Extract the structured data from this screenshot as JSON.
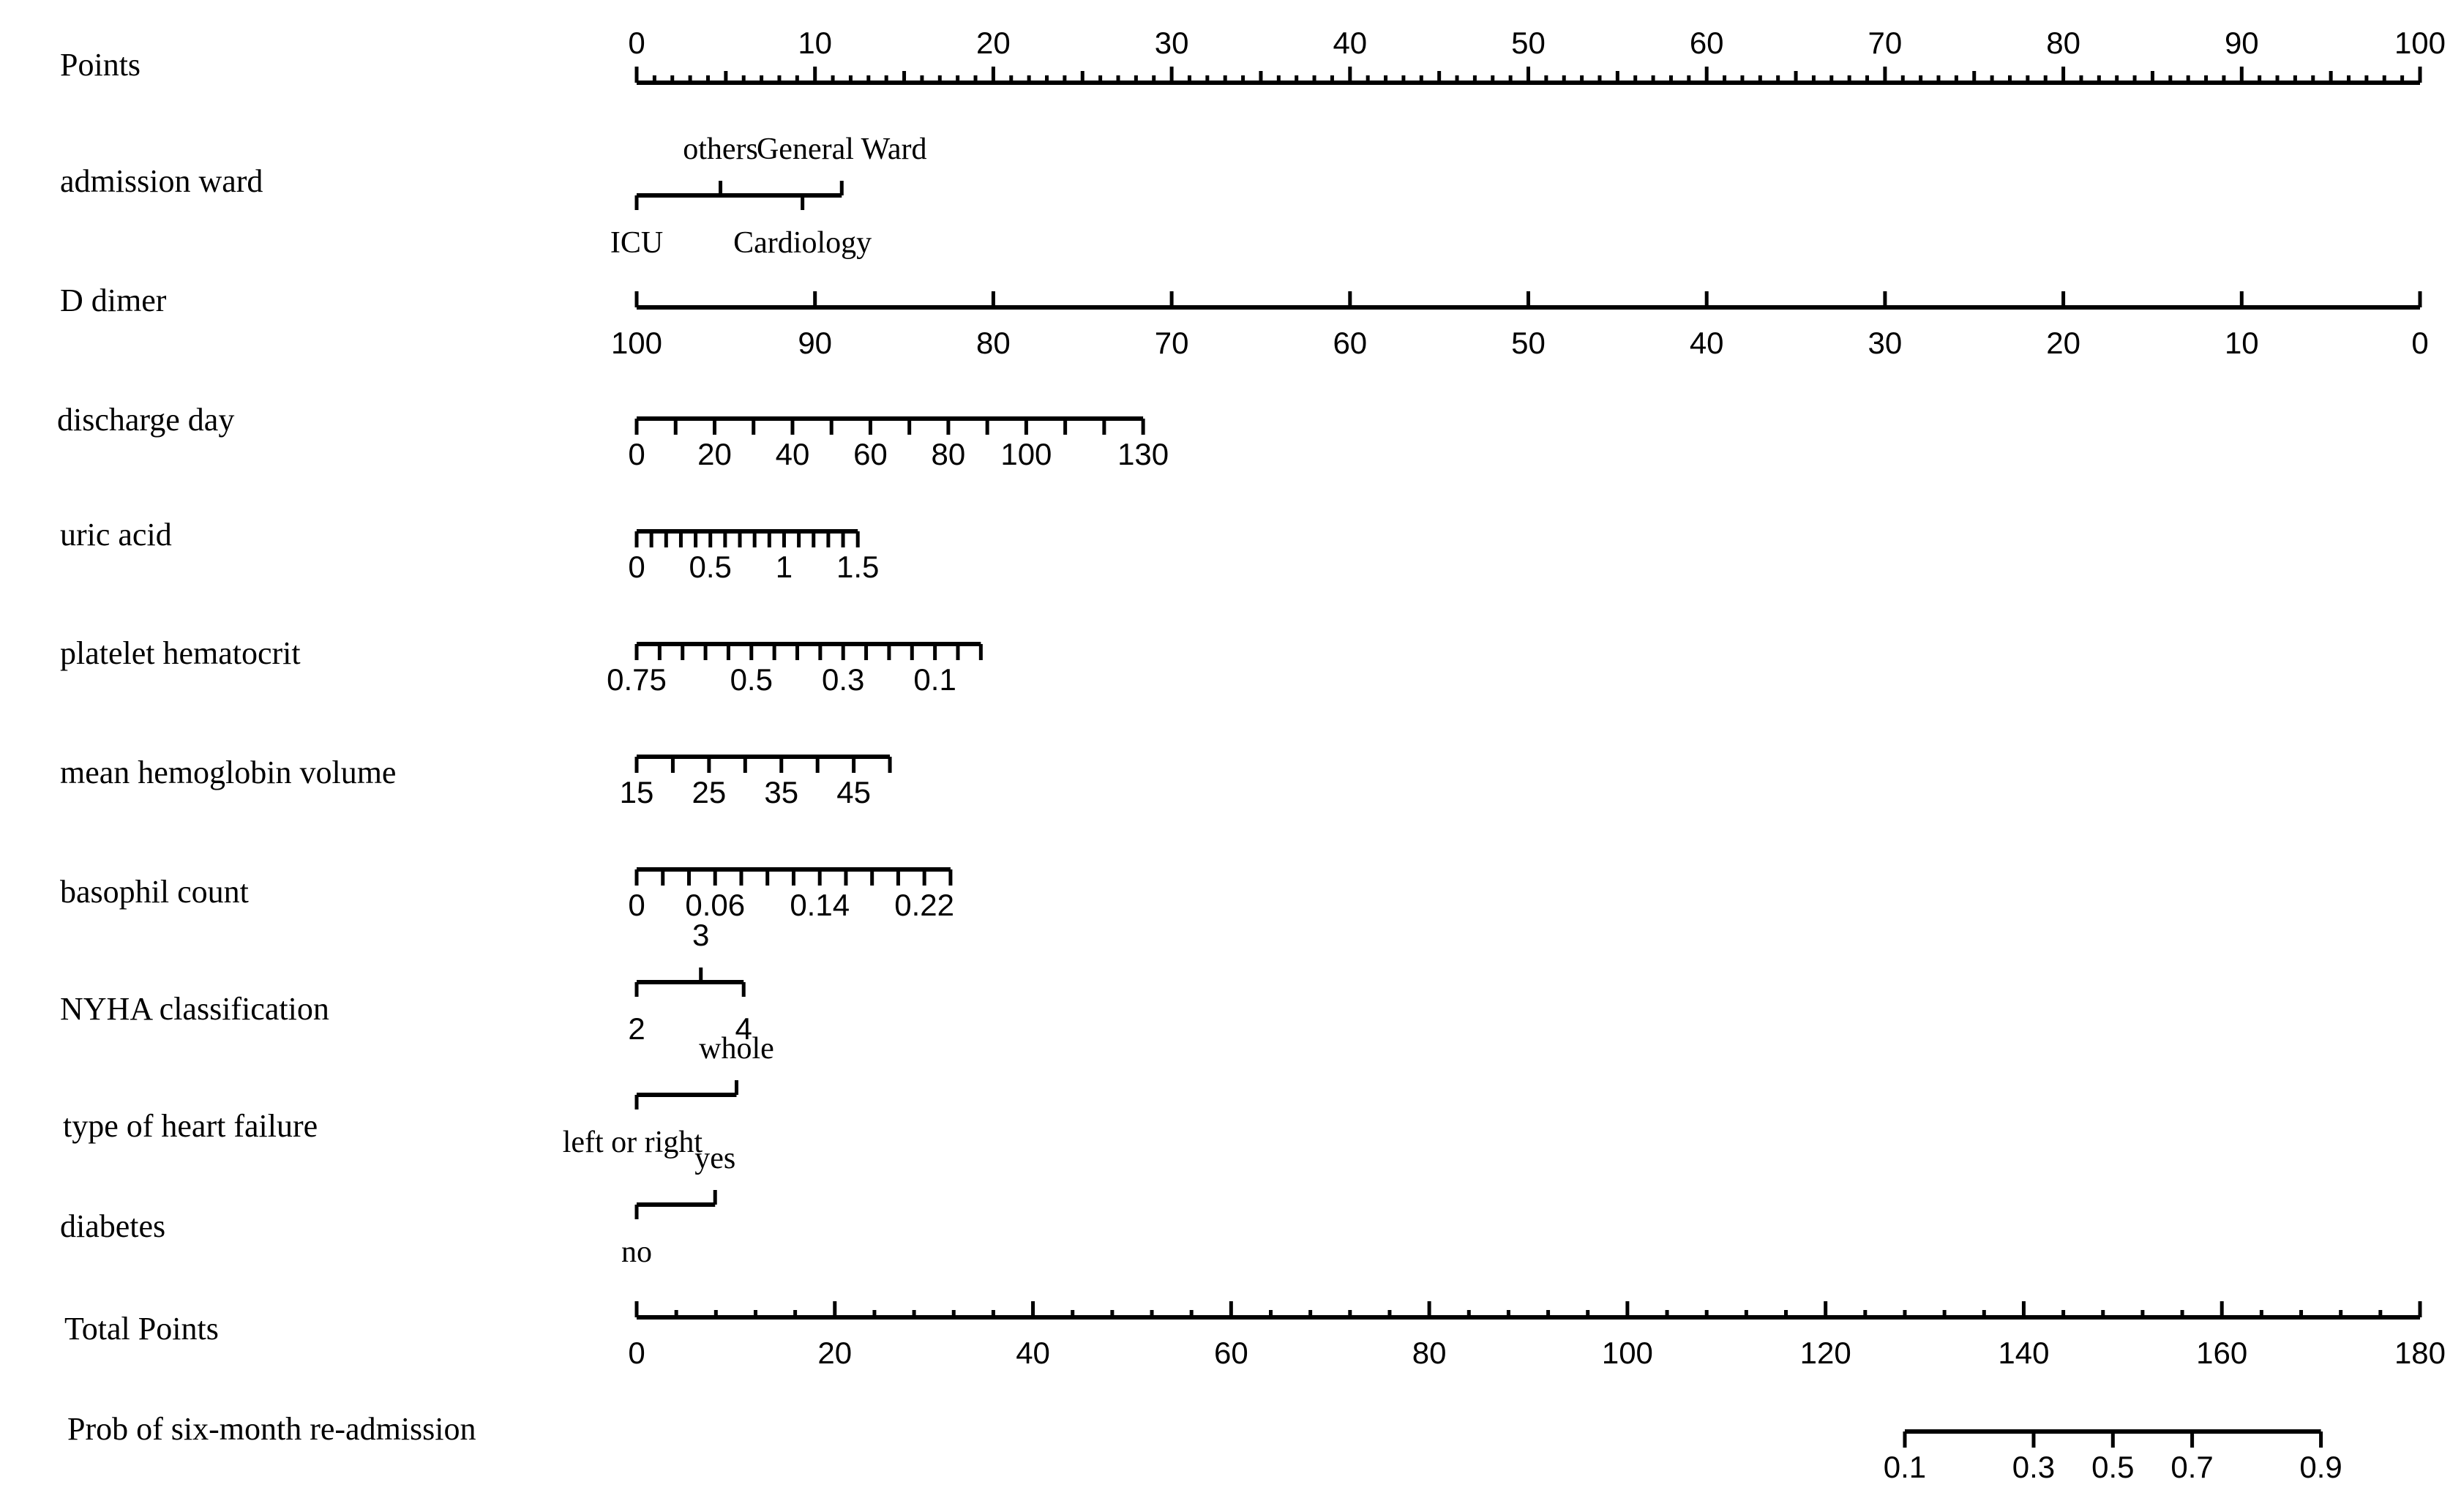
{
  "chart_data": {
    "type": "nomogram",
    "rows": [
      {
        "label": "Points",
        "range": [
          0,
          100
        ],
        "major_ticks": [
          0,
          10,
          20,
          30,
          40,
          50,
          60,
          70,
          80,
          90,
          100
        ],
        "minor_step": 1,
        "tick_labels": [
          {
            "text": "0",
            "v": 0
          },
          {
            "text": "10",
            "v": 10
          },
          {
            "text": "20",
            "v": 20
          },
          {
            "text": "30",
            "v": 30
          },
          {
            "text": "40",
            "v": 40
          },
          {
            "text": "50",
            "v": 50
          },
          {
            "text": "60",
            "v": 60
          },
          {
            "text": "70",
            "v": 70
          },
          {
            "text": "80",
            "v": 80
          },
          {
            "text": "90",
            "v": 90
          },
          {
            "text": "100",
            "v": 100
          }
        ]
      },
      {
        "label": "admission ward",
        "categories": [
          {
            "name": "ICU",
            "points": 0,
            "label_side": "below"
          },
          {
            "name": "others",
            "points": 4.7,
            "label_side": "above"
          },
          {
            "name": "Cardiology",
            "points": 9.3,
            "label_side": "below"
          },
          {
            "name": "General Ward",
            "points": 11.5,
            "label_side": "above"
          }
        ]
      },
      {
        "label": "D dimer",
        "scale": [
          [
            100,
            0
          ],
          [
            0,
            100
          ]
        ],
        "range_points": [
          0,
          100
        ],
        "major_ticks": [
          100,
          90,
          80,
          70,
          60,
          50,
          40,
          30,
          20,
          10,
          0
        ],
        "tick_labels": [
          {
            "text": "100",
            "v": 100
          },
          {
            "text": "90",
            "v": 90
          },
          {
            "text": "80",
            "v": 80
          },
          {
            "text": "70",
            "v": 70
          },
          {
            "text": "60",
            "v": 60
          },
          {
            "text": "50",
            "v": 50
          },
          {
            "text": "40",
            "v": 40
          },
          {
            "text": "30",
            "v": 30
          },
          {
            "text": "20",
            "v": 20
          },
          {
            "text": "10",
            "v": 10
          },
          {
            "text": "0",
            "v": 0
          }
        ]
      },
      {
        "label": "discharge day",
        "scale": [
          [
            0,
            0
          ],
          [
            130,
            28.4
          ]
        ],
        "major_ticks": [
          0,
          10,
          20,
          30,
          40,
          50,
          60,
          70,
          80,
          90,
          100,
          110,
          120,
          130
        ],
        "tick_labels": [
          {
            "text": "0",
            "v": 0
          },
          {
            "text": "20",
            "v": 20
          },
          {
            "text": "40",
            "v": 40
          },
          {
            "text": "60",
            "v": 60
          },
          {
            "text": "80",
            "v": 80
          },
          {
            "text": "100",
            "v": 100
          },
          {
            "text": "130",
            "v": 130
          }
        ]
      },
      {
        "label": "uric acid",
        "scale": [
          [
            0,
            0
          ],
          [
            1.5,
            12.4
          ]
        ],
        "major_ticks": [
          0,
          0.1,
          0.2,
          0.3,
          0.4,
          0.5,
          0.6,
          0.7,
          0.8,
          0.9,
          1.0,
          1.1,
          1.2,
          1.3,
          1.4,
          1.5
        ],
        "tick_labels": [
          {
            "text": "0",
            "v": 0
          },
          {
            "text": "0.5",
            "v": 0.5
          },
          {
            "text": "1",
            "v": 1
          },
          {
            "text": "1.5",
            "v": 1.5
          }
        ]
      },
      {
        "label": "platelet hematocrit",
        "scale": [
          [
            0.75,
            0
          ],
          [
            0.0,
            19.3
          ]
        ],
        "major_ticks": [
          0.75,
          0.7,
          0.65,
          0.6,
          0.55,
          0.5,
          0.45,
          0.4,
          0.35,
          0.3,
          0.25,
          0.2,
          0.15,
          0.1,
          0.05,
          0.0
        ],
        "tick_labels": [
          {
            "text": "0.75",
            "v": 0.75
          },
          {
            "text": "0.5",
            "v": 0.5
          },
          {
            "text": "0.3",
            "v": 0.3
          },
          {
            "text": "0.1",
            "v": 0.1
          }
        ]
      },
      {
        "label": "mean hemoglobin volume",
        "scale": [
          [
            15,
            0
          ],
          [
            50,
            14.2
          ]
        ],
        "major_ticks": [
          15,
          20,
          25,
          30,
          35,
          40,
          45,
          50
        ],
        "tick_labels": [
          {
            "text": "15",
            "v": 15
          },
          {
            "text": "25",
            "v": 25
          },
          {
            "text": "35",
            "v": 35
          },
          {
            "text": "45",
            "v": 45
          }
        ]
      },
      {
        "label": "basophil count",
        "scale": [
          [
            0,
            0
          ],
          [
            0.24,
            17.6
          ]
        ],
        "major_ticks": [
          0,
          0.02,
          0.04,
          0.06,
          0.08,
          0.1,
          0.12,
          0.14,
          0.16,
          0.18,
          0.2,
          0.22,
          0.24
        ],
        "tick_labels": [
          {
            "text": "0",
            "v": 0
          },
          {
            "text": "0.06",
            "v": 0.06
          },
          {
            "text": "0.14",
            "v": 0.14
          },
          {
            "text": "0.22",
            "v": 0.22
          }
        ]
      },
      {
        "label": "NYHA classification",
        "categories": [
          {
            "name": "2",
            "points": 0,
            "label_side": "below"
          },
          {
            "name": "3",
            "points": 3.6,
            "label_side": "above"
          },
          {
            "name": "4",
            "points": 6.0,
            "label_side": "below"
          }
        ]
      },
      {
        "label": "type of heart failure",
        "categories": [
          {
            "name": "left or right",
            "points": 0,
            "label_side": "below"
          },
          {
            "name": "whole",
            "points": 5.6,
            "label_side": "above"
          }
        ]
      },
      {
        "label": "diabetes",
        "categories": [
          {
            "name": "no",
            "points": 0,
            "label_side": "below"
          },
          {
            "name": "yes",
            "points": 4.4,
            "label_side": "above"
          }
        ]
      },
      {
        "label": "Total Points",
        "range": [
          0,
          180
        ],
        "major_ticks": [
          0,
          20,
          40,
          60,
          80,
          100,
          120,
          140,
          160,
          180
        ],
        "minor_step": 4,
        "tick_labels": [
          {
            "text": "0",
            "v": 0
          },
          {
            "text": "20",
            "v": 20
          },
          {
            "text": "40",
            "v": 40
          },
          {
            "text": "60",
            "v": 60
          },
          {
            "text": "80",
            "v": 80
          },
          {
            "text": "100",
            "v": 100
          },
          {
            "text": "120",
            "v": 120
          },
          {
            "text": "140",
            "v": 140
          },
          {
            "text": "160",
            "v": 160
          },
          {
            "text": "180",
            "v": 180
          }
        ]
      },
      {
        "label": "Prob of six-month re-admission",
        "scale": [
          [
            0.1,
            128
          ],
          [
            0.3,
            141
          ],
          [
            0.5,
            149
          ],
          [
            0.7,
            157
          ],
          [
            0.9,
            170
          ]
        ],
        "major_ticks": [
          0.1,
          0.3,
          0.5,
          0.7,
          0.9
        ],
        "tick_labels": [
          {
            "text": "0.1",
            "v": 0.1
          },
          {
            "text": "0.3",
            "v": 0.3
          },
          {
            "text": "0.5",
            "v": 0.5
          },
          {
            "text": "0.7",
            "v": 0.7
          },
          {
            "text": "0.9",
            "v": 0.9
          }
        ]
      }
    ]
  }
}
